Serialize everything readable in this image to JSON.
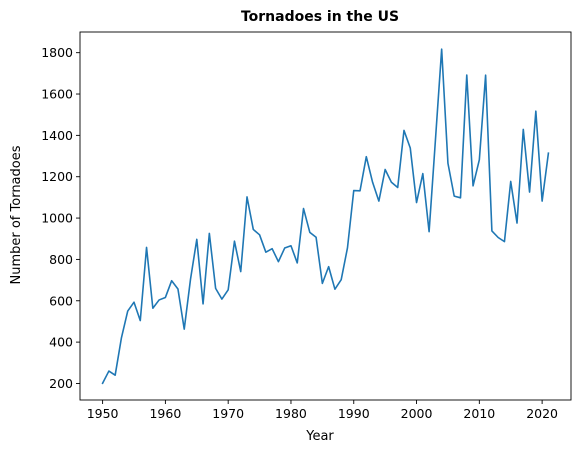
{
  "chart_data": {
    "type": "line",
    "title": "Tornadoes in the US",
    "xlabel": "Year",
    "ylabel": "Number of Tornadoes",
    "xlim": [
      1946.4,
      2024.6
    ],
    "ylim": [
      120,
      1900
    ],
    "xticks": [
      1950,
      1960,
      1970,
      1980,
      1990,
      2000,
      2010,
      2020
    ],
    "yticks": [
      200,
      400,
      600,
      800,
      1000,
      1200,
      1400,
      1600,
      1800
    ],
    "grid": false,
    "color": "#1f77b4",
    "series": [
      {
        "x": [
          1950,
          1951,
          1952,
          1953,
          1954,
          1955,
          1956,
          1957,
          1958,
          1959,
          1960,
          1961,
          1962,
          1963,
          1964,
          1965,
          1966,
          1967,
          1968,
          1969,
          1970,
          1971,
          1972,
          1973,
          1974,
          1975,
          1976,
          1977,
          1978,
          1979,
          1980,
          1981,
          1982,
          1983,
          1984,
          1985,
          1986,
          1987,
          1988,
          1989,
          1990,
          1991,
          1992,
          1993,
          1994,
          1995,
          1996,
          1997,
          1998,
          1999,
          2000,
          2001,
          2002,
          2003,
          2004,
          2005,
          2006,
          2007,
          2008,
          2009,
          2010,
          2011,
          2012,
          2013,
          2014,
          2015,
          2016,
          2017,
          2018,
          2019,
          2020,
          2021
        ],
        "values": [
          201,
          260,
          240,
          421,
          550,
          593,
          504,
          858,
          564,
          604,
          616,
          697,
          657,
          463,
          704,
          897,
          585,
          926,
          660,
          608,
          653,
          888,
          741,
          1102,
          945,
          919,
          835,
          852,
          789,
          855,
          866,
          783,
          1046,
          931,
          907,
          684,
          765,
          656,
          702,
          856,
          1133,
          1132,
          1297,
          1173,
          1082,
          1235,
          1173,
          1148,
          1424,
          1339,
          1075,
          1215,
          934,
          1374,
          1817,
          1265,
          1106,
          1098,
          1692,
          1156,
          1282,
          1691,
          938,
          906,
          886,
          1177,
          976,
          1429,
          1126,
          1517,
          1082,
          1314
        ]
      }
    ]
  }
}
